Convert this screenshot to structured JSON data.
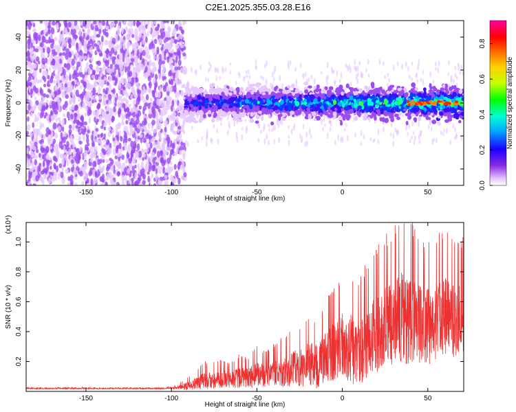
{
  "title": "C2E1.2025.355.03.28.E16",
  "colors": {
    "snr_line": "#ef3030",
    "spectrogram_noise": "#8a3cf0",
    "spectrogram_band": "#2818f0"
  },
  "chart_data": [
    {
      "type": "heatmap",
      "name": "spectrogram",
      "xlabel": "Height of straight line (km)",
      "ylabel": "Frequency (Hz)",
      "xlim": [
        -185,
        71
      ],
      "ylim": [
        -50,
        50
      ],
      "xticks": [
        -150,
        -100,
        -50,
        0,
        50
      ],
      "xtick_labels": [
        "-150",
        "-100",
        "-50",
        "0",
        "50"
      ],
      "yticks": [
        -40,
        -20,
        0,
        20,
        40
      ],
      "ytick_labels": [
        "-40",
        "-20",
        "0",
        "20",
        "40"
      ],
      "colorbar": {
        "label": "Normalized spectral amplitude",
        "range": [
          0,
          0.93
        ],
        "ticks": [
          0.0,
          0.2,
          0.4,
          0.6,
          0.8
        ],
        "tick_labels": [
          "0.0",
          "0.2",
          "0.4",
          "0.6",
          "0.8"
        ],
        "colormap": [
          "#ffffff",
          "#8a2be2",
          "#0000ff",
          "#00bfff",
          "#00ffcc",
          "#00ff00",
          "#ffff00",
          "#ff8000",
          "#ff0000",
          "#ff00a0"
        ]
      },
      "regions": [
        {
          "description": "broadband noise",
          "x": [
            -185,
            -92
          ],
          "freq": [
            -50,
            50
          ],
          "amplitude": 0.15
        },
        {
          "description": "signal band",
          "x": [
            -92,
            71
          ],
          "freq": [
            -5,
            5
          ],
          "amplitude": [
            0.3,
            0.9
          ]
        }
      ],
      "grid": false
    },
    {
      "type": "line",
      "name": "snr",
      "xlabel": "Height of straight line (km)",
      "ylabel": "SNR (10 * v/v)",
      "y_multiplier": "(x10⁴)",
      "xlim": [
        -185,
        71
      ],
      "ylim": [
        0,
        1.13
      ],
      "xticks": [
        -150,
        -100,
        -50,
        0,
        50
      ],
      "xtick_labels": [
        "-150",
        "-100",
        "-50",
        "0",
        "50"
      ],
      "yticks": [
        0.2,
        0.4,
        0.6,
        0.8,
        1.0
      ],
      "ytick_labels": [
        "0.2",
        "0.4",
        "0.6",
        "0.8",
        "1.0"
      ],
      "series": [
        {
          "x": [
            -185,
            -170,
            -150,
            -130,
            -110,
            -100,
            -95,
            -90,
            -85,
            -80,
            -75,
            -70,
            -65,
            -60,
            -55,
            -50,
            -45,
            -40,
            -35,
            -30,
            -25,
            -20,
            -15,
            -10,
            -5,
            0,
            5,
            10,
            15,
            20,
            25,
            30,
            35,
            40,
            45,
            50,
            55,
            60,
            65,
            71
          ],
          "y": [
            0.02,
            0.02,
            0.02,
            0.02,
            0.02,
            0.02,
            0.03,
            0.04,
            0.06,
            0.08,
            0.08,
            0.09,
            0.08,
            0.1,
            0.09,
            0.12,
            0.11,
            0.13,
            0.14,
            0.16,
            0.17,
            0.2,
            0.18,
            0.24,
            0.28,
            0.32,
            0.3,
            0.28,
            0.36,
            0.4,
            0.44,
            0.48,
            0.52,
            0.5,
            0.48,
            0.46,
            0.5,
            0.52,
            0.5,
            0.52
          ],
          "spread": [
            0.005,
            0.005,
            0.005,
            0.005,
            0.005,
            0.008,
            0.02,
            0.04,
            0.06,
            0.08,
            0.08,
            0.08,
            0.07,
            0.1,
            0.09,
            0.12,
            0.1,
            0.12,
            0.14,
            0.16,
            0.18,
            0.2,
            0.2,
            0.22,
            0.28,
            0.3,
            0.32,
            0.3,
            0.34,
            0.36,
            0.38,
            0.4,
            0.42,
            0.4,
            0.38,
            0.36,
            0.36,
            0.36,
            0.34,
            0.32
          ]
        }
      ],
      "grid": false
    }
  ]
}
